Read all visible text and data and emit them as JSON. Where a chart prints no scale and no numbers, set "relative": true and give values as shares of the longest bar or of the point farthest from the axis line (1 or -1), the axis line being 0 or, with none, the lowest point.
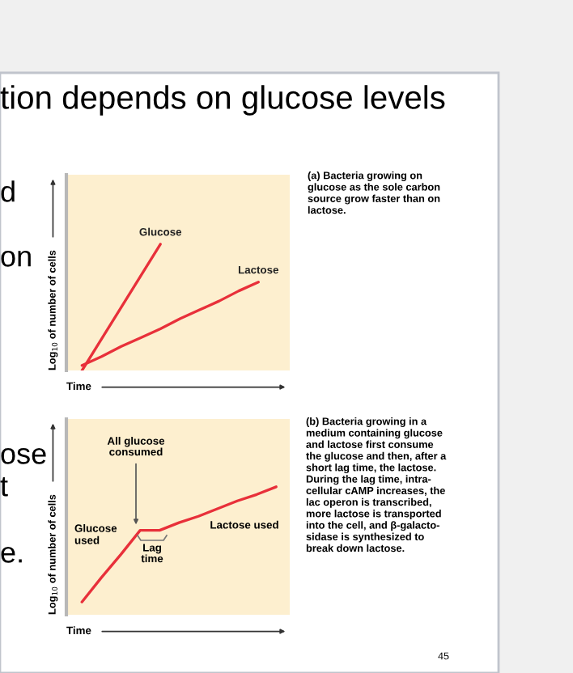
{
  "chart_data": [
    {
      "type": "line",
      "relative": true,
      "title": "tion depends on glucose levels",
      "xlabel": "Time",
      "ylabel": "Log$_{10}$ of number of cells",
      "categories": [
        null,
        null,
        null,
        null,
        null,
        null,
        null,
        null,
        null,
        null
      ],
      "series": [
        {
          "name": "Glucose",
          "color": "#e8303a",
          "values": [
            0,
            0.25,
            0.5,
            0.75,
            1,
            null,
            null,
            null,
            null,
            null
          ]
        },
        {
          "name": "Lactose",
          "color": "#e8303a",
          "values": [
            0.04,
            0.11,
            0.19,
            0.26,
            0.33,
            0.41,
            0.48,
            0.55,
            0.63,
            0.7
          ]
        }
      ],
      "annotations": [
        "d",
        "on",
        "(a) Bacteria growing on\nglucose as the sole carbon\nsource grow faster than on\nlactose."
      ]
    },
    {
      "type": "line",
      "relative": true,
      "xlabel": "Time",
      "ylabel": "Log$_{10}$ of number of cells",
      "categories": [
        null,
        null,
        null,
        null,
        null,
        null,
        null,
        null,
        null,
        null,
        null
      ],
      "series": [
        {
          "color": "#e8303a",
          "values": [
            0.1,
            0.29,
            0.47,
            0.66,
            0.66,
            0.72,
            0.77,
            0.83,
            0.89,
            0.94,
            1
          ]
        }
      ],
      "annotations": [
        "All glucose\nconsumed",
        "Glucose\nused",
        "Lag\ntime",
        "Lactose used",
        "ose",
        "t",
        "e.",
        "(b) Bacteria growing in a\nmedium containing glucose\nand lactose first consume\nthe glucose and then, after a\nshort lag time, the lactose.\nDuring the lag time, intra-\ncellular cAMP increases, the\nlac operon is transcribed,\nmore lactose is transported\ninto the cell, and β-galacto-\nsidase is synthesized to\nbreak down lactose.",
        "45"
      ]
    }
  ]
}
